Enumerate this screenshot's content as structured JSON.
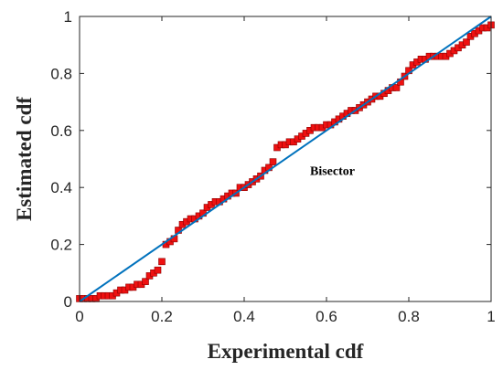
{
  "chart_data": {
    "type": "scatter",
    "title": "",
    "xlabel": "Experimental cdf",
    "ylabel": "Estimated cdf",
    "xlim": [
      0,
      1
    ],
    "ylim": [
      0,
      1
    ],
    "xticks": [
      "0",
      "0.2",
      "0.4",
      "0.6",
      "0.8",
      "1"
    ],
    "yticks": [
      "0",
      "0.2",
      "0.4",
      "0.6",
      "0.8",
      "1"
    ],
    "grid": false,
    "annotation": {
      "text": "Bisector",
      "x": 0.56,
      "y": 0.46
    },
    "series": [
      {
        "kind": "scatter",
        "color": "#ee1111",
        "edge_color": "#8b0000",
        "marker": "square",
        "x": [
          0.0,
          0.01,
          0.02,
          0.03,
          0.04,
          0.05,
          0.06,
          0.07,
          0.08,
          0.09,
          0.1,
          0.11,
          0.12,
          0.13,
          0.14,
          0.15,
          0.16,
          0.17,
          0.18,
          0.19,
          0.2,
          0.21,
          0.22,
          0.23,
          0.24,
          0.25,
          0.26,
          0.27,
          0.28,
          0.29,
          0.3,
          0.31,
          0.32,
          0.33,
          0.34,
          0.35,
          0.36,
          0.37,
          0.38,
          0.39,
          0.4,
          0.41,
          0.42,
          0.43,
          0.44,
          0.45,
          0.46,
          0.47,
          0.48,
          0.49,
          0.5,
          0.51,
          0.52,
          0.53,
          0.54,
          0.55,
          0.56,
          0.57,
          0.58,
          0.59,
          0.6,
          0.61,
          0.62,
          0.63,
          0.64,
          0.65,
          0.66,
          0.67,
          0.68,
          0.69,
          0.7,
          0.71,
          0.72,
          0.73,
          0.74,
          0.75,
          0.76,
          0.77,
          0.78,
          0.79,
          0.8,
          0.81,
          0.82,
          0.83,
          0.84,
          0.85,
          0.86,
          0.87,
          0.88,
          0.89,
          0.9,
          0.91,
          0.92,
          0.93,
          0.94,
          0.95,
          0.96,
          0.97,
          0.98,
          0.99,
          1.0
        ],
        "y": [
          0.01,
          0.01,
          0.01,
          0.01,
          0.01,
          0.02,
          0.02,
          0.02,
          0.02,
          0.03,
          0.04,
          0.04,
          0.05,
          0.05,
          0.06,
          0.06,
          0.07,
          0.09,
          0.1,
          0.11,
          0.14,
          0.2,
          0.21,
          0.22,
          0.25,
          0.27,
          0.28,
          0.29,
          0.29,
          0.3,
          0.31,
          0.33,
          0.34,
          0.35,
          0.35,
          0.36,
          0.37,
          0.38,
          0.38,
          0.4,
          0.4,
          0.41,
          0.42,
          0.43,
          0.44,
          0.46,
          0.47,
          0.49,
          0.54,
          0.55,
          0.55,
          0.56,
          0.56,
          0.57,
          0.58,
          0.59,
          0.6,
          0.61,
          0.61,
          0.61,
          0.62,
          0.62,
          0.63,
          0.64,
          0.65,
          0.66,
          0.67,
          0.67,
          0.68,
          0.69,
          0.7,
          0.71,
          0.72,
          0.72,
          0.73,
          0.74,
          0.75,
          0.75,
          0.77,
          0.79,
          0.81,
          0.83,
          0.84,
          0.85,
          0.85,
          0.86,
          0.86,
          0.86,
          0.86,
          0.86,
          0.87,
          0.88,
          0.89,
          0.9,
          0.91,
          0.93,
          0.94,
          0.95,
          0.96,
          0.96,
          0.97
        ]
      },
      {
        "kind": "line",
        "color": "#0072bd",
        "x": [
          0,
          1
        ],
        "y": [
          0,
          1
        ]
      }
    ]
  }
}
